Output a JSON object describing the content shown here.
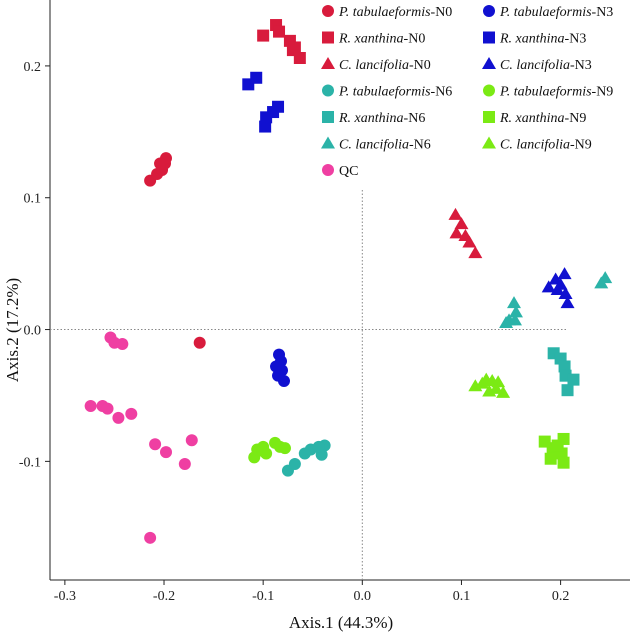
{
  "chart_data": {
    "type": "scatter",
    "xlabel": "Axis.1 (44.3%)",
    "ylabel": "Axis.2 (17.2%)",
    "xlim": [
      -0.315,
      0.27
    ],
    "ylim": [
      -0.19,
      0.25
    ],
    "xticks": [
      -0.3,
      -0.2,
      -0.1,
      0.0,
      0.1,
      0.2
    ],
    "yticks": [
      -0.1,
      0.0,
      0.1,
      0.2
    ],
    "xtick_labels": [
      "-0.3",
      "-0.2",
      "-0.1",
      "0.0",
      "0.1",
      "0.2"
    ],
    "ytick_labels": [
      "-0.1",
      "0.0",
      "0.1",
      "0.2"
    ],
    "reference_lines": {
      "x": 0,
      "y": 0,
      "style": "dotted"
    },
    "grid": false,
    "legend_position": "top-right",
    "series": [
      {
        "name": "P. tabulaeformis-N0",
        "species": "P. tabulaeformis",
        "suffix": "-N0",
        "shape": "circle",
        "color": "#d81b3c",
        "points": [
          [
            -0.214,
            0.113
          ],
          [
            -0.207,
            0.118
          ],
          [
            -0.202,
            0.121
          ],
          [
            -0.199,
            0.126
          ],
          [
            -0.198,
            0.13
          ],
          [
            -0.204,
            0.126
          ],
          [
            -0.164,
            -0.01
          ]
        ]
      },
      {
        "name": "P. tabulaeformis-N3",
        "species": "P. tabulaeformis",
        "suffix": "-N3",
        "shape": "circle",
        "color": "#1010d0",
        "points": [
          [
            -0.084,
            -0.019
          ],
          [
            -0.082,
            -0.024
          ],
          [
            -0.087,
            -0.028
          ],
          [
            -0.081,
            -0.031
          ],
          [
            -0.085,
            -0.035
          ],
          [
            -0.079,
            -0.039
          ]
        ]
      },
      {
        "name": "R. xanthina-N0",
        "species": "R. xanthina",
        "suffix": "-N0",
        "shape": "square",
        "color": "#d81b3c",
        "points": [
          [
            -0.1,
            0.223
          ],
          [
            -0.087,
            0.231
          ],
          [
            -0.084,
            0.226
          ],
          [
            -0.073,
            0.219
          ],
          [
            -0.07,
            0.212
          ],
          [
            -0.068,
            0.214
          ],
          [
            -0.063,
            0.206
          ]
        ]
      },
      {
        "name": "R. xanthina-N3",
        "species": "R. xanthina",
        "suffix": "-N3",
        "shape": "square",
        "color": "#1010d0",
        "points": [
          [
            -0.115,
            0.186
          ],
          [
            -0.107,
            0.191
          ],
          [
            -0.085,
            0.169
          ],
          [
            -0.09,
            0.165
          ],
          [
            -0.097,
            0.161
          ],
          [
            -0.098,
            0.154
          ]
        ]
      },
      {
        "name": "C. lancifolia-N0",
        "species": "C. lancifolia",
        "suffix": "-N0",
        "shape": "triangle",
        "color": "#d81b3c",
        "points": [
          [
            0.094,
            0.087
          ],
          [
            0.1,
            0.08
          ],
          [
            0.095,
            0.073
          ],
          [
            0.108,
            0.066
          ],
          [
            0.114,
            0.058
          ],
          [
            0.104,
            0.071
          ]
        ]
      },
      {
        "name": "C. lancifolia-N3",
        "species": "C. lancifolia",
        "suffix": "-N3",
        "shape": "triangle",
        "color": "#1010d0",
        "points": [
          [
            0.188,
            0.032
          ],
          [
            0.195,
            0.038
          ],
          [
            0.204,
            0.042
          ],
          [
            0.2,
            0.034
          ],
          [
            0.205,
            0.027
          ],
          [
            0.207,
            0.02
          ],
          [
            0.197,
            0.03
          ]
        ]
      },
      {
        "name": "P. tabulaeformis-N6",
        "species": "P. tabulaeformis",
        "suffix": "-N6",
        "shape": "circle",
        "color": "#2bb3a8",
        "points": [
          [
            -0.075,
            -0.107
          ],
          [
            -0.068,
            -0.102
          ],
          [
            -0.058,
            -0.094
          ],
          [
            -0.052,
            -0.091
          ],
          [
            -0.041,
            -0.095
          ],
          [
            -0.038,
            -0.088
          ],
          [
            -0.044,
            -0.089
          ]
        ]
      },
      {
        "name": "P. tabulaeformis-N9",
        "species": "P. tabulaeformis",
        "suffix": "-N9",
        "shape": "circle",
        "color": "#7bea14",
        "points": [
          [
            -0.109,
            -0.097
          ],
          [
            -0.106,
            -0.091
          ],
          [
            -0.1,
            -0.089
          ],
          [
            -0.097,
            -0.094
          ],
          [
            -0.088,
            -0.086
          ],
          [
            -0.083,
            -0.089
          ],
          [
            -0.078,
            -0.09
          ],
          [
            -0.101,
            -0.092
          ]
        ]
      },
      {
        "name": "R. xanthina-N6",
        "species": "R. xanthina",
        "suffix": "-N6",
        "shape": "square",
        "color": "#2bb3a8",
        "points": [
          [
            0.193,
            -0.018
          ],
          [
            0.2,
            -0.022
          ],
          [
            0.204,
            -0.028
          ],
          [
            0.205,
            -0.035
          ],
          [
            0.213,
            -0.038
          ],
          [
            0.207,
            -0.046
          ]
        ]
      },
      {
        "name": "R. xanthina-N9",
        "species": "R. xanthina",
        "suffix": "-N9",
        "shape": "square",
        "color": "#7bea14",
        "points": [
          [
            0.184,
            -0.085
          ],
          [
            0.192,
            -0.09
          ],
          [
            0.203,
            -0.083
          ],
          [
            0.19,
            -0.098
          ],
          [
            0.201,
            -0.094
          ],
          [
            0.203,
            -0.101
          ],
          [
            0.197,
            -0.088
          ]
        ]
      },
      {
        "name": "C. lancifolia-N6",
        "species": "C. lancifolia",
        "suffix": "-N6",
        "shape": "triangle",
        "color": "#2bb3a8",
        "points": [
          [
            0.153,
            0.02
          ],
          [
            0.155,
            0.013
          ],
          [
            0.148,
            0.007
          ],
          [
            0.154,
            0.007
          ],
          [
            0.145,
            0.005
          ],
          [
            0.241,
            0.035
          ],
          [
            0.245,
            0.039
          ]
        ]
      },
      {
        "name": "C. lancifolia-N9",
        "species": "C. lancifolia",
        "suffix": "-N9",
        "shape": "triangle",
        "color": "#7bea14",
        "points": [
          [
            0.114,
            -0.043
          ],
          [
            0.121,
            -0.041
          ],
          [
            0.125,
            -0.038
          ],
          [
            0.131,
            -0.039
          ],
          [
            0.137,
            -0.04
          ],
          [
            0.128,
            -0.047
          ],
          [
            0.142,
            -0.048
          ],
          [
            0.135,
            -0.045
          ]
        ]
      },
      {
        "name": "QC",
        "species": "",
        "suffix": "QC",
        "shape": "circle",
        "color": "#ef3fa2",
        "points": [
          [
            -0.254,
            -0.006
          ],
          [
            -0.25,
            -0.01
          ],
          [
            -0.242,
            -0.011
          ],
          [
            -0.274,
            -0.058
          ],
          [
            -0.262,
            -0.058
          ],
          [
            -0.257,
            -0.06
          ],
          [
            -0.246,
            -0.067
          ],
          [
            -0.233,
            -0.064
          ],
          [
            -0.209,
            -0.087
          ],
          [
            -0.198,
            -0.093
          ],
          [
            -0.172,
            -0.084
          ],
          [
            -0.179,
            -0.102
          ],
          [
            -0.214,
            -0.158
          ]
        ]
      }
    ]
  }
}
